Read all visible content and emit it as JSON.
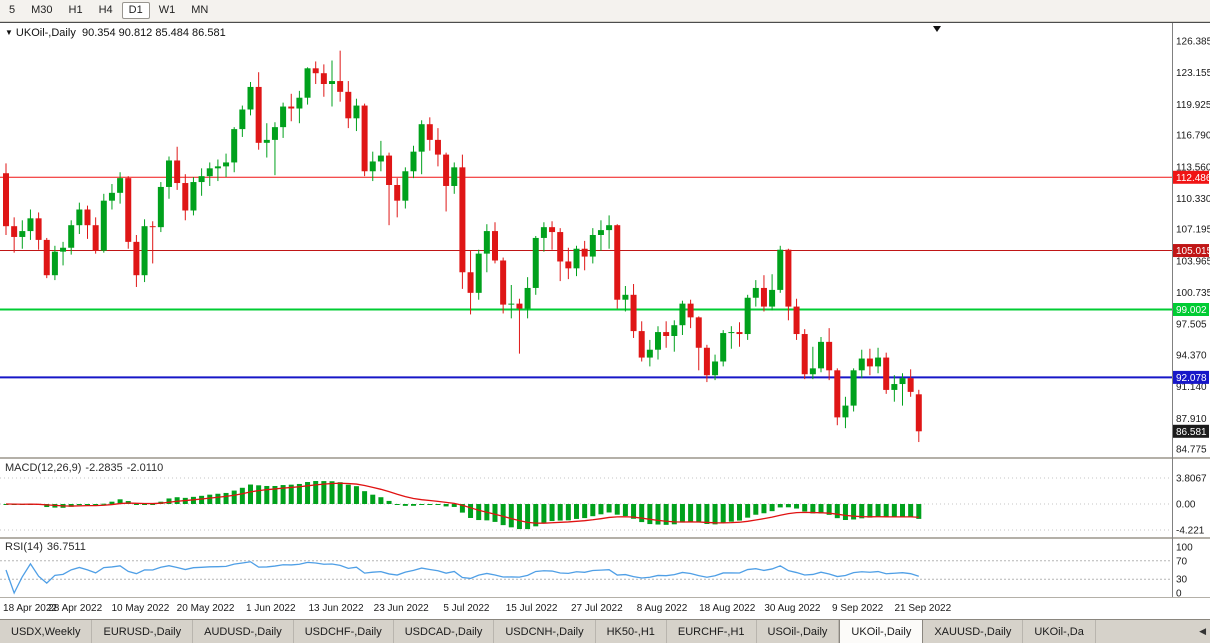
{
  "toolbar": {
    "periods": [
      "5",
      "M30",
      "H1",
      "H4",
      "D1",
      "W1",
      "MN"
    ],
    "active_period": "D1"
  },
  "icons": {
    "chart_menu": "▼",
    "shift_marker": "▼",
    "tab_scroll_left": "◀"
  },
  "chart": {
    "symbol_label": "UKOil-,Daily",
    "ohlc_line": "90.354 90.812 85.484 86.581",
    "open": "90.354",
    "high": "90.812",
    "low": "85.484",
    "close": "86.581",
    "scale": {
      "max": 126.385,
      "min": 84.775
    },
    "price_axis_labels": [
      "126.385",
      "123.155",
      "119.925",
      "116.790",
      "113.560",
      "110.330",
      "107.195",
      "103.965",
      "100.735",
      "97.505",
      "94.370",
      "91.140",
      "87.910",
      "84.775"
    ],
    "hlines": [
      {
        "price": 112.486,
        "label": "112.486",
        "color": "#f01414",
        "width": 1
      },
      {
        "price": 105.015,
        "label": "105.015",
        "color": "#c01616",
        "width": 1
      },
      {
        "price": 99.002,
        "label": "99.002",
        "color": "#00cc33",
        "width": 2
      },
      {
        "price": 92.078,
        "label": "92.078",
        "color": "#1717c8",
        "width": 2
      }
    ],
    "current_price_label": {
      "price": 86.581,
      "label": "86.581",
      "color": "#1b1b1b"
    },
    "colors": {
      "up": "#00a11c",
      "down": "#df1616",
      "axis_text": "#1a1a1a",
      "pane_divider": "#b4b0a8",
      "axis_line": "#808080",
      "grid_dot": "#c6c6c6"
    }
  },
  "macd_pane": {
    "title": "MACD(12,26,9)",
    "value_main": "-2.2835",
    "value_signal": "-2.0110",
    "fast": 12,
    "slow": 26,
    "signal": 9,
    "axis_labels": [
      "3.8067",
      "0.00",
      "-4.221"
    ],
    "axis_values": [
      3.8067,
      0,
      -4.221
    ],
    "histogram_color": "#00a11c",
    "signal_color": "#e01212"
  },
  "rsi_pane": {
    "title": "RSI(14)",
    "value": "36.7511",
    "period": 14,
    "axis_labels": [
      "100",
      "70",
      "30",
      "0"
    ],
    "axis_values": [
      100,
      70,
      30,
      0
    ],
    "levels": [
      70,
      30
    ],
    "line_color": "#4f9fe6"
  },
  "tabs": {
    "items": [
      "USDX,Weekly",
      "EURUSD-,Daily",
      "AUDUSD-,Daily",
      "USDCHF-,Daily",
      "USDCAD-,Daily",
      "USDCNH-,Daily",
      "HK50-,H1",
      "EURCHF-,H1",
      "USOil-,Daily",
      "UKOil-,Daily",
      "XAUUSD-,Daily",
      "UKOil-,Da"
    ],
    "active": "UKOil-,Daily",
    "scroll_left_icon": "◀"
  },
  "chart_data": {
    "type": "candlestick",
    "symbol": "UKOil-",
    "timeframe": "Daily",
    "ohlc_current": [
      90.354,
      90.812,
      85.484,
      86.581
    ],
    "price_range": [
      84.775,
      126.385
    ],
    "horizontal_levels": [
      112.486,
      105.015,
      99.002,
      92.078
    ],
    "date_labels": [
      {
        "i": 0,
        "t": "18 Apr 2022"
      },
      {
        "i": 8,
        "t": "28 Apr 2022"
      },
      {
        "i": 16,
        "t": "10 May 2022"
      },
      {
        "i": 24,
        "t": "20 May 2022"
      },
      {
        "i": 32,
        "t": "1 Jun 2022"
      },
      {
        "i": 40,
        "t": "13 Jun 2022"
      },
      {
        "i": 48,
        "t": "23 Jun 2022"
      },
      {
        "i": 56,
        "t": "5 Jul 2022"
      },
      {
        "i": 64,
        "t": "15 Jul 2022"
      },
      {
        "i": 72,
        "t": "27 Jul 2022"
      },
      {
        "i": 80,
        "t": "8 Aug 2022"
      },
      {
        "i": 88,
        "t": "18 Aug 2022"
      },
      {
        "i": 96,
        "t": "30 Aug 2022"
      },
      {
        "i": 104,
        "t": "9 Sep 2022"
      },
      {
        "i": 112,
        "t": "21 Sep 2022"
      }
    ],
    "candles": [
      [
        112.9,
        113.9,
        106.6,
        107.5
      ],
      [
        107.5,
        108.4,
        104.8,
        106.4
      ],
      [
        106.4,
        108.1,
        105.2,
        107.0
      ],
      [
        107.0,
        109.2,
        106.1,
        108.3
      ],
      [
        108.3,
        108.9,
        105.1,
        106.1
      ],
      [
        106.1,
        106.3,
        102.2,
        102.5
      ],
      [
        102.5,
        105.5,
        102.0,
        104.9
      ],
      [
        104.9,
        105.9,
        103.5,
        105.3
      ],
      [
        105.3,
        108.1,
        104.6,
        107.6
      ],
      [
        107.6,
        109.9,
        106.7,
        109.2
      ],
      [
        109.2,
        109.6,
        106.2,
        107.6
      ],
      [
        107.6,
        108.4,
        104.7,
        105.0
      ],
      [
        105.0,
        110.8,
        104.8,
        110.1
      ],
      [
        110.1,
        111.8,
        109.2,
        110.9
      ],
      [
        110.9,
        113.0,
        109.8,
        112.4
      ],
      [
        112.4,
        112.6,
        105.2,
        105.9
      ],
      [
        105.9,
        106.6,
        101.3,
        102.5
      ],
      [
        102.5,
        108.2,
        101.8,
        107.5
      ],
      [
        107.5,
        108.0,
        103.7,
        107.4
      ],
      [
        107.4,
        112.0,
        106.9,
        111.5
      ],
      [
        111.5,
        114.6,
        110.3,
        114.2
      ],
      [
        114.2,
        115.6,
        111.2,
        111.9
      ],
      [
        111.9,
        112.8,
        108.1,
        109.1
      ],
      [
        109.1,
        112.5,
        108.6,
        112.0
      ],
      [
        112.0,
        113.4,
        110.6,
        112.6
      ],
      [
        112.6,
        114.0,
        111.6,
        113.4
      ],
      [
        113.4,
        114.3,
        112.1,
        113.6
      ],
      [
        113.6,
        114.9,
        112.5,
        114.0
      ],
      [
        114.0,
        117.6,
        113.0,
        117.4
      ],
      [
        117.4,
        119.8,
        116.6,
        119.4
      ],
      [
        119.4,
        122.2,
        118.8,
        121.7
      ],
      [
        121.7,
        123.2,
        115.3,
        116.0
      ],
      [
        116.0,
        118.0,
        114.5,
        116.3
      ],
      [
        116.3,
        118.1,
        112.7,
        117.6
      ],
      [
        117.6,
        120.1,
        116.5,
        119.7
      ],
      [
        119.7,
        121.0,
        118.2,
        119.5
      ],
      [
        119.5,
        121.3,
        118.0,
        120.6
      ],
      [
        120.6,
        123.7,
        119.9,
        123.6
      ],
      [
        123.6,
        124.3,
        122.0,
        123.1
      ],
      [
        123.1,
        124.0,
        120.7,
        122.0
      ],
      [
        122.0,
        124.4,
        119.7,
        122.3
      ],
      [
        122.3,
        125.4,
        120.2,
        121.2
      ],
      [
        121.2,
        122.3,
        117.5,
        118.5
      ],
      [
        118.5,
        120.5,
        117.2,
        119.8
      ],
      [
        119.8,
        120.0,
        112.6,
        113.1
      ],
      [
        113.1,
        115.1,
        112.1,
        114.1
      ],
      [
        114.1,
        116.2,
        113.1,
        114.7
      ],
      [
        114.7,
        115.0,
        107.6,
        111.7
      ],
      [
        111.7,
        112.4,
        108.4,
        110.1
      ],
      [
        110.1,
        113.5,
        109.3,
        113.1
      ],
      [
        113.1,
        115.7,
        112.4,
        115.1
      ],
      [
        115.1,
        118.3,
        112.8,
        117.9
      ],
      [
        117.9,
        118.6,
        115.2,
        116.3
      ],
      [
        116.3,
        117.5,
        113.6,
        114.8
      ],
      [
        114.8,
        115.0,
        109.0,
        111.6
      ],
      [
        111.6,
        114.0,
        110.8,
        113.5
      ],
      [
        113.5,
        114.8,
        101.1,
        102.8
      ],
      [
        102.8,
        105.0,
        98.5,
        100.7
      ],
      [
        100.7,
        105.1,
        100.0,
        104.7
      ],
      [
        104.7,
        107.7,
        102.8,
        107.0
      ],
      [
        107.0,
        107.9,
        103.7,
        104.0
      ],
      [
        104.0,
        104.3,
        98.6,
        99.5
      ],
      [
        99.5,
        101.5,
        98.1,
        99.6
      ],
      [
        99.6,
        100.1,
        94.5,
        99.1
      ],
      [
        99.1,
        102.3,
        98.1,
        101.2
      ],
      [
        101.2,
        106.5,
        100.5,
        106.3
      ],
      [
        106.3,
        107.9,
        104.9,
        107.4
      ],
      [
        107.4,
        108.0,
        105.1,
        106.9
      ],
      [
        106.9,
        107.3,
        101.9,
        103.9
      ],
      [
        103.9,
        105.3,
        102.1,
        103.2
      ],
      [
        103.2,
        105.5,
        102.4,
        105.2
      ],
      [
        105.2,
        106.0,
        103.0,
        104.4
      ],
      [
        104.4,
        107.3,
        103.7,
        106.6
      ],
      [
        106.6,
        108.1,
        105.0,
        107.1
      ],
      [
        107.1,
        108.6,
        105.2,
        107.6
      ],
      [
        107.6,
        107.7,
        99.1,
        100.0
      ],
      [
        100.0,
        101.4,
        98.8,
        100.5
      ],
      [
        100.5,
        101.6,
        96.1,
        96.8
      ],
      [
        96.8,
        97.8,
        93.7,
        94.1
      ],
      [
        94.1,
        95.9,
        93.2,
        94.9
      ],
      [
        94.9,
        97.3,
        93.9,
        96.7
      ],
      [
        96.7,
        97.8,
        95.1,
        96.3
      ],
      [
        96.3,
        97.9,
        94.7,
        97.4
      ],
      [
        97.4,
        99.9,
        96.4,
        99.6
      ],
      [
        99.6,
        100.0,
        97.1,
        98.2
      ],
      [
        98.2,
        98.3,
        92.8,
        95.1
      ],
      [
        95.1,
        95.4,
        91.6,
        92.3
      ],
      [
        92.3,
        94.4,
        91.8,
        93.7
      ],
      [
        93.7,
        96.9,
        93.2,
        96.6
      ],
      [
        96.6,
        97.3,
        95.0,
        96.7
      ],
      [
        96.7,
        97.7,
        95.2,
        96.5
      ],
      [
        96.5,
        100.5,
        95.9,
        100.2
      ],
      [
        100.2,
        102.0,
        99.3,
        101.2
      ],
      [
        101.2,
        102.5,
        98.8,
        99.3
      ],
      [
        99.3,
        102.6,
        98.9,
        101.0
      ],
      [
        101.0,
        105.5,
        100.7,
        105.1
      ],
      [
        105.1,
        105.2,
        97.9,
        99.3
      ],
      [
        99.3,
        100.1,
        95.9,
        96.5
      ],
      [
        96.5,
        97.0,
        91.9,
        92.4
      ],
      [
        92.4,
        95.2,
        91.9,
        93.0
      ],
      [
        93.0,
        96.2,
        92.6,
        95.7
      ],
      [
        95.7,
        97.1,
        91.8,
        92.8
      ],
      [
        92.8,
        93.0,
        87.2,
        88.0
      ],
      [
        88.0,
        90.1,
        86.9,
        89.2
      ],
      [
        89.2,
        93.0,
        88.6,
        92.8
      ],
      [
        92.8,
        94.9,
        92.0,
        94.0
      ],
      [
        94.0,
        95.0,
        92.3,
        93.2
      ],
      [
        93.2,
        95.1,
        92.5,
        94.1
      ],
      [
        94.1,
        94.6,
        90.4,
        90.8
      ],
      [
        90.8,
        92.3,
        89.6,
        91.4
      ],
      [
        91.4,
        92.5,
        89.2,
        92.0
      ],
      [
        92.0,
        92.9,
        90.1,
        90.6
      ],
      [
        90.354,
        90.812,
        85.484,
        86.581
      ]
    ]
  }
}
